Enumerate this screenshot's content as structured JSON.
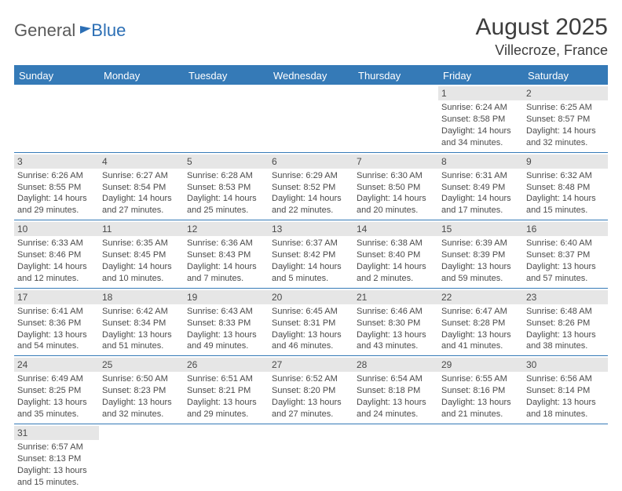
{
  "logo": {
    "part1": "General",
    "part2": "Blue"
  },
  "title": "August 2025",
  "location": "Villecroze, France",
  "colors": {
    "header_bg": "#357ab7",
    "header_text": "#ffffff",
    "daynum_bg": "#e6e6e6",
    "border": "#357ab7",
    "text": "#4a4a4a",
    "logo_gray": "#5a5a5a",
    "logo_blue": "#2c6fb5"
  },
  "day_names": [
    "Sunday",
    "Monday",
    "Tuesday",
    "Wednesday",
    "Thursday",
    "Friday",
    "Saturday"
  ],
  "weeks": [
    [
      null,
      null,
      null,
      null,
      null,
      {
        "n": "1",
        "sr": "6:24 AM",
        "ss": "8:58 PM",
        "dl": "14 hours and 34 minutes."
      },
      {
        "n": "2",
        "sr": "6:25 AM",
        "ss": "8:57 PM",
        "dl": "14 hours and 32 minutes."
      }
    ],
    [
      {
        "n": "3",
        "sr": "6:26 AM",
        "ss": "8:55 PM",
        "dl": "14 hours and 29 minutes."
      },
      {
        "n": "4",
        "sr": "6:27 AM",
        "ss": "8:54 PM",
        "dl": "14 hours and 27 minutes."
      },
      {
        "n": "5",
        "sr": "6:28 AM",
        "ss": "8:53 PM",
        "dl": "14 hours and 25 minutes."
      },
      {
        "n": "6",
        "sr": "6:29 AM",
        "ss": "8:52 PM",
        "dl": "14 hours and 22 minutes."
      },
      {
        "n": "7",
        "sr": "6:30 AM",
        "ss": "8:50 PM",
        "dl": "14 hours and 20 minutes."
      },
      {
        "n": "8",
        "sr": "6:31 AM",
        "ss": "8:49 PM",
        "dl": "14 hours and 17 minutes."
      },
      {
        "n": "9",
        "sr": "6:32 AM",
        "ss": "8:48 PM",
        "dl": "14 hours and 15 minutes."
      }
    ],
    [
      {
        "n": "10",
        "sr": "6:33 AM",
        "ss": "8:46 PM",
        "dl": "14 hours and 12 minutes."
      },
      {
        "n": "11",
        "sr": "6:35 AM",
        "ss": "8:45 PM",
        "dl": "14 hours and 10 minutes."
      },
      {
        "n": "12",
        "sr": "6:36 AM",
        "ss": "8:43 PM",
        "dl": "14 hours and 7 minutes."
      },
      {
        "n": "13",
        "sr": "6:37 AM",
        "ss": "8:42 PM",
        "dl": "14 hours and 5 minutes."
      },
      {
        "n": "14",
        "sr": "6:38 AM",
        "ss": "8:40 PM",
        "dl": "14 hours and 2 minutes."
      },
      {
        "n": "15",
        "sr": "6:39 AM",
        "ss": "8:39 PM",
        "dl": "13 hours and 59 minutes."
      },
      {
        "n": "16",
        "sr": "6:40 AM",
        "ss": "8:37 PM",
        "dl": "13 hours and 57 minutes."
      }
    ],
    [
      {
        "n": "17",
        "sr": "6:41 AM",
        "ss": "8:36 PM",
        "dl": "13 hours and 54 minutes."
      },
      {
        "n": "18",
        "sr": "6:42 AM",
        "ss": "8:34 PM",
        "dl": "13 hours and 51 minutes."
      },
      {
        "n": "19",
        "sr": "6:43 AM",
        "ss": "8:33 PM",
        "dl": "13 hours and 49 minutes."
      },
      {
        "n": "20",
        "sr": "6:45 AM",
        "ss": "8:31 PM",
        "dl": "13 hours and 46 minutes."
      },
      {
        "n": "21",
        "sr": "6:46 AM",
        "ss": "8:30 PM",
        "dl": "13 hours and 43 minutes."
      },
      {
        "n": "22",
        "sr": "6:47 AM",
        "ss": "8:28 PM",
        "dl": "13 hours and 41 minutes."
      },
      {
        "n": "23",
        "sr": "6:48 AM",
        "ss": "8:26 PM",
        "dl": "13 hours and 38 minutes."
      }
    ],
    [
      {
        "n": "24",
        "sr": "6:49 AM",
        "ss": "8:25 PM",
        "dl": "13 hours and 35 minutes."
      },
      {
        "n": "25",
        "sr": "6:50 AM",
        "ss": "8:23 PM",
        "dl": "13 hours and 32 minutes."
      },
      {
        "n": "26",
        "sr": "6:51 AM",
        "ss": "8:21 PM",
        "dl": "13 hours and 29 minutes."
      },
      {
        "n": "27",
        "sr": "6:52 AM",
        "ss": "8:20 PM",
        "dl": "13 hours and 27 minutes."
      },
      {
        "n": "28",
        "sr": "6:54 AM",
        "ss": "8:18 PM",
        "dl": "13 hours and 24 minutes."
      },
      {
        "n": "29",
        "sr": "6:55 AM",
        "ss": "8:16 PM",
        "dl": "13 hours and 21 minutes."
      },
      {
        "n": "30",
        "sr": "6:56 AM",
        "ss": "8:14 PM",
        "dl": "13 hours and 18 minutes."
      }
    ],
    [
      {
        "n": "31",
        "sr": "6:57 AM",
        "ss": "8:13 PM",
        "dl": "13 hours and 15 minutes."
      },
      null,
      null,
      null,
      null,
      null,
      null
    ]
  ],
  "labels": {
    "sunrise": "Sunrise: ",
    "sunset": "Sunset: ",
    "daylight": "Daylight: "
  }
}
